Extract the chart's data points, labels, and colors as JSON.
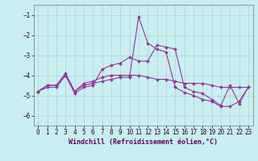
{
  "background_color": "#c8eef0",
  "grid_color": "#b0d8da",
  "line_color": "#993399",
  "marker_color": "#993399",
  "xlabel": "Windchill (Refroidissement éolien,°C)",
  "xlabel_fontsize": 6.0,
  "tick_fontsize": 5.5,
  "xlim": [
    -0.5,
    23.5
  ],
  "ylim": [
    -6.5,
    -0.5
  ],
  "yticks": [
    -6,
    -5,
    -4,
    -3,
    -2,
    -1
  ],
  "xticks": [
    0,
    1,
    2,
    3,
    4,
    5,
    6,
    7,
    8,
    9,
    10,
    11,
    12,
    13,
    14,
    15,
    16,
    17,
    18,
    19,
    20,
    21,
    22,
    23
  ],
  "series": [
    {
      "x": [
        0,
        1,
        2,
        3,
        4,
        5,
        6,
        7,
        8,
        9,
        10,
        11,
        12,
        13,
        14,
        15,
        16,
        17,
        18,
        19,
        20,
        21,
        22,
        23
      ],
      "y": [
        -4.8,
        -4.6,
        -4.6,
        -4.0,
        -4.9,
        -4.6,
        -4.5,
        -3.7,
        -3.5,
        -3.4,
        -3.1,
        -3.3,
        -3.3,
        -2.5,
        -2.6,
        -2.7,
        -4.6,
        -4.8,
        -4.9,
        -5.2,
        -5.5,
        -4.5,
        -5.4,
        -4.6
      ]
    },
    {
      "x": [
        0,
        1,
        2,
        3,
        4,
        5,
        6,
        7,
        8,
        9,
        10,
        11,
        12,
        13,
        14,
        15,
        16,
        17,
        18,
        19,
        20,
        21,
        22,
        23
      ],
      "y": [
        -4.8,
        -4.5,
        -4.5,
        -3.9,
        -4.8,
        -4.4,
        -4.3,
        -4.1,
        -4.0,
        -4.0,
        -4.0,
        -4.0,
        -4.1,
        -4.2,
        -4.2,
        -4.3,
        -4.4,
        -4.4,
        -4.4,
        -4.5,
        -4.6,
        -4.6,
        -4.6,
        -4.6
      ]
    },
    {
      "x": [
        0,
        1,
        2,
        3,
        4,
        5,
        6,
        7,
        8,
        9,
        10,
        11,
        12,
        13,
        14,
        15,
        16,
        17,
        18,
        19,
        20,
        21,
        22,
        23
      ],
      "y": [
        -4.8,
        -4.5,
        -4.5,
        -4.0,
        -4.8,
        -4.5,
        -4.4,
        -4.3,
        -4.2,
        -4.1,
        -4.1,
        -1.1,
        -2.4,
        -2.7,
        -2.85,
        -4.6,
        -4.85,
        -5.0,
        -5.2,
        -5.3,
        -5.55,
        -5.55,
        -5.3,
        -4.6
      ]
    }
  ]
}
